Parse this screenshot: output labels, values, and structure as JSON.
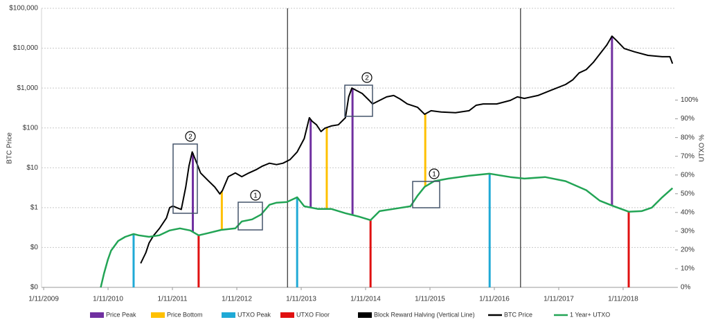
{
  "chart_data": {
    "type": "line",
    "y_label": "BTC Price",
    "y2_label": "UTXO %",
    "xlim": [
      2009.8,
      2019.64
    ],
    "xticks": [
      {
        "value": 2009.833,
        "label": "1/11/2009"
      },
      {
        "value": 2010.833,
        "label": "1/11/2010"
      },
      {
        "value": 2011.833,
        "label": "1/11/2011"
      },
      {
        "value": 2012.833,
        "label": "1/11/2012"
      },
      {
        "value": 2013.833,
        "label": "1/11/2013"
      },
      {
        "value": 2014.833,
        "label": "1/11/2014"
      },
      {
        "value": 2015.833,
        "label": "1/11/2015"
      },
      {
        "value": 2016.833,
        "label": "1/11/2016"
      },
      {
        "value": 2017.833,
        "label": "1/11/2017"
      },
      {
        "value": 2018.833,
        "label": "1/11/2018"
      }
    ],
    "ylim": [
      0.01,
      100000
    ],
    "log_y": true,
    "yticks": [
      {
        "value": 0.01,
        "label": "$0"
      },
      {
        "value": 0.1,
        "label": "$0"
      },
      {
        "value": 1,
        "label": "$1"
      },
      {
        "value": 10,
        "label": "$10"
      },
      {
        "value": 100,
        "label": "$100"
      },
      {
        "value": 1000,
        "label": "$1,000"
      },
      {
        "value": 10000,
        "label": "$10,000"
      },
      {
        "value": 100000,
        "label": "$100,000"
      }
    ],
    "y2lim": [
      0,
      149
    ],
    "y2ticks": [
      {
        "value": 0,
        "label": "0%"
      },
      {
        "value": 10,
        "label": "10%"
      },
      {
        "value": 20,
        "label": "20%"
      },
      {
        "value": 30,
        "label": "30%"
      },
      {
        "value": 40,
        "label": "40%"
      },
      {
        "value": 50,
        "label": "50%"
      },
      {
        "value": 60,
        "label": "60%"
      },
      {
        "value": 70,
        "label": "70%"
      },
      {
        "value": 80,
        "label": "80%"
      },
      {
        "value": 90,
        "label": "90%"
      },
      {
        "value": 100,
        "label": "100%"
      }
    ],
    "grid": true,
    "legend": "bottom",
    "events": [
      {
        "name": "Price Peak",
        "color": "#7030a0",
        "x": [
          2012.15,
          2013.98,
          2014.63,
          2018.66
        ]
      },
      {
        "name": "Price Bottom",
        "color": "#ffc000",
        "x": [
          2012.6,
          2014.23,
          2015.76
        ]
      },
      {
        "name": "UTXO Peak",
        "color": "#1fa9d6",
        "x": [
          2011.23,
          2013.77,
          2016.76
        ]
      },
      {
        "name": "UTXO Floor",
        "color": "#e01010",
        "x": [
          2012.24,
          2014.91,
          2018.92
        ]
      },
      {
        "name": "Block Reward Halving (Vertical Line)",
        "color": "#000000",
        "x": [
          2013.62,
          2017.24
        ]
      }
    ],
    "series": [
      {
        "name": "BTC Price",
        "color": "#000000",
        "x": [
          2011.34,
          2011.42,
          2011.47,
          2011.54,
          2011.63,
          2011.74,
          2011.79,
          2011.84,
          2011.9,
          2011.97,
          2012.04,
          2012.09,
          2012.14,
          2012.19,
          2012.27,
          2012.38,
          2012.49,
          2012.57,
          2012.61,
          2012.7,
          2012.81,
          2012.91,
          2013.02,
          2013.13,
          2013.23,
          2013.34,
          2013.45,
          2013.55,
          2013.66,
          2013.77,
          2013.88,
          2013.96,
          2014.0,
          2014.07,
          2014.14,
          2014.2,
          2014.3,
          2014.41,
          2014.52,
          2014.57,
          2014.62,
          2014.68,
          2014.78,
          2014.89,
          2014.94,
          2015.05,
          2015.16,
          2015.27,
          2015.37,
          2015.48,
          2015.64,
          2015.75,
          2015.85,
          2016.01,
          2016.23,
          2016.44,
          2016.55,
          2016.66,
          2016.87,
          2017.08,
          2017.19,
          2017.3,
          2017.51,
          2017.72,
          2017.94,
          2018.05,
          2018.15,
          2018.26,
          2018.37,
          2018.47,
          2018.58,
          2018.66,
          2018.74,
          2018.85,
          2019.01,
          2019.22,
          2019.44,
          2019.56,
          2019.6
        ],
        "values": [
          0.04,
          0.074,
          0.13,
          0.2,
          0.3,
          0.55,
          1,
          1.1,
          1,
          0.9,
          3.3,
          11,
          25,
          16,
          7.4,
          4.9,
          3.3,
          2.2,
          2.7,
          6,
          7.4,
          6,
          7.4,
          8.9,
          11,
          13,
          12,
          13,
          16,
          25,
          54,
          180,
          148,
          120,
          81,
          98,
          112,
          120,
          180,
          600,
          1000,
          890,
          730,
          490,
          400,
          490,
          600,
          650,
          530,
          400,
          330,
          220,
          270,
          250,
          240,
          270,
          370,
          400,
          400,
          490,
          600,
          550,
          650,
          890,
          1230,
          1600,
          2400,
          2900,
          4400,
          7100,
          12000,
          20000,
          15000,
          9800,
          8100,
          6600,
          6100,
          6100,
          4100
        ]
      },
      {
        "name": "1 Year+ UTXO",
        "color": "#22a455",
        "axis": "y2",
        "x": [
          2010.72,
          2010.77,
          2010.83,
          2010.88,
          2010.99,
          2011.1,
          2011.23,
          2011.31,
          2011.47,
          2011.63,
          2011.79,
          2011.95,
          2012.11,
          2012.24,
          2012.38,
          2012.59,
          2012.81,
          2012.91,
          2013.07,
          2013.21,
          2013.34,
          2013.45,
          2013.61,
          2013.77,
          2013.88,
          2014.09,
          2014.3,
          2014.52,
          2014.73,
          2014.91,
          2015.05,
          2015.27,
          2015.53,
          2015.64,
          2015.75,
          2015.9,
          2016.12,
          2016.44,
          2016.76,
          2017.08,
          2017.3,
          2017.62,
          2017.94,
          2018.26,
          2018.47,
          2018.69,
          2018.92,
          2019.12,
          2019.28,
          2019.44,
          2019.6
        ],
        "values": [
          0,
          7.4,
          14.8,
          19.6,
          24.8,
          27.0,
          28.5,
          27.8,
          27.0,
          27.8,
          30.4,
          31.5,
          30.4,
          27.8,
          28.9,
          30.7,
          31.5,
          35.2,
          36.3,
          38.9,
          44.1,
          45.2,
          45.6,
          48.1,
          43.3,
          41.9,
          41.9,
          39.6,
          37.8,
          35.9,
          40.7,
          41.9,
          43.3,
          48.9,
          53.7,
          56.7,
          58.1,
          59.6,
          60.7,
          58.9,
          58.1,
          58.9,
          56.7,
          51.9,
          46.3,
          43.3,
          40.4,
          40.7,
          42.6,
          48.1,
          53.0
        ]
      }
    ],
    "annotations": [
      "2",
      "1",
      "2",
      "1"
    ]
  }
}
